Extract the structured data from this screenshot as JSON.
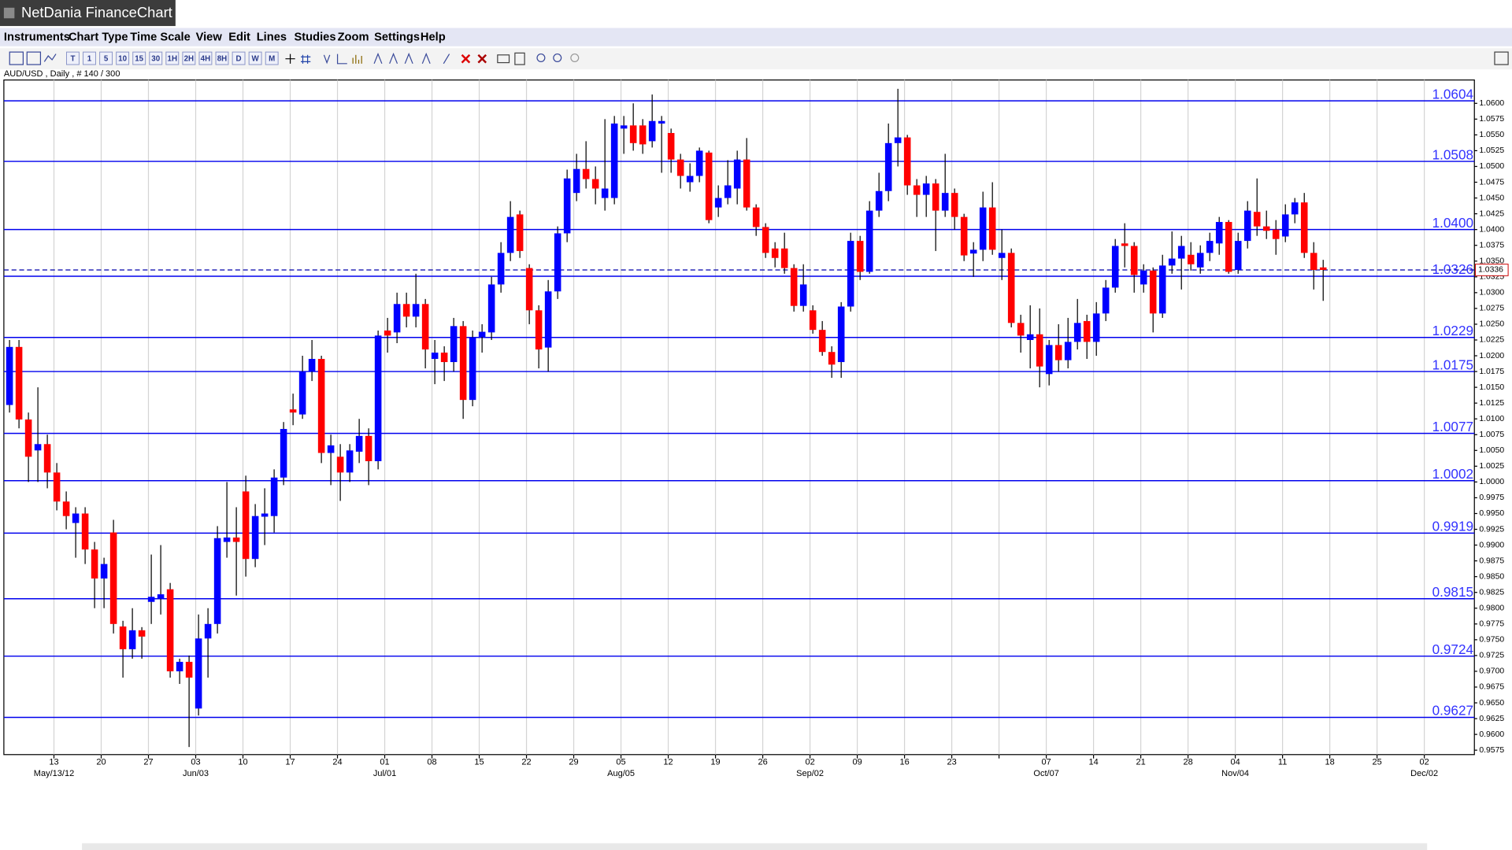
{
  "app_title": "NetDania FinanceChart",
  "menu": [
    "Instruments",
    "Chart Type",
    "Time Scale",
    "View",
    "Edit",
    "Lines",
    "Studies",
    "Zoom",
    "Settings",
    "Help"
  ],
  "toolbar": [
    "T",
    "1",
    "5",
    "10",
    "15",
    "30",
    "1H",
    "2H",
    "4H",
    "8H",
    "D",
    "W",
    "M"
  ],
  "chart_data": {
    "type": "candlestick",
    "instrument_label": "AUD/USD , Daily , # 140 / 300",
    "up_color": "#0000ff",
    "down_color": "#ff0000",
    "level_color": "#0000ee",
    "grid": true,
    "open": [
      1.0122,
      1.0214,
      1.0099,
      1.005,
      1.006,
      1.0015,
      0.9969,
      0.9935,
      0.995,
      0.9893,
      0.9847,
      0.992,
      0.9771,
      0.9735,
      0.9765,
      0.981,
      0.9815,
      0.983,
      0.97,
      0.9715,
      0.9641,
      0.9752,
      0.9775,
      0.9905,
      0.9912,
      0.9985,
      0.9878,
      0.9945,
      0.9946,
      1.0007,
      1.0115,
      1.0107,
      1.0175,
      1.0195,
      1.0046,
      1.004,
      1.0015,
      1.0048,
      1.0073,
      1.0033,
      1.024,
      1.0237,
      1.0282,
      1.0262,
      1.0282,
      1.0195,
      1.0205,
      1.019,
      1.0247,
      1.013,
      1.023,
      1.0237,
      1.0313,
      1.0363,
      1.0424,
      1.0339,
      1.0272,
      1.0213,
      1.0302,
      1.0394,
      1.0458,
      1.0496,
      1.048,
      1.045,
      1.045,
      1.056,
      1.0565,
      1.0565,
      1.054,
      1.0568,
      1.0553,
      1.0511,
      1.0475,
      1.0485,
      1.0522,
      1.0435,
      1.045,
      1.0465,
      1.0511,
      1.0435,
      1.0404,
      1.037,
      1.037,
      1.0339,
      1.0279,
      1.0272,
      1.0241,
      1.0206,
      1.019,
      1.0278,
      1.0382,
      1.0333,
      1.043,
      1.0461,
      1.0537,
      1.0546,
      1.047,
      1.0455,
      1.0473,
      1.043,
      1.0458,
      1.042,
      1.0362,
      1.0368,
      1.0435,
      1.0355,
      1.0363,
      1.0252,
      1.0225,
      1.0234,
      1.0171,
      1.0217,
      1.0193,
      1.0222,
      1.0255,
      1.0222,
      1.0267,
      1.0308,
      1.0378,
      1.0374,
      1.0313,
      1.0335,
      1.0267,
      1.0343,
      1.0354,
      1.036,
      1.034,
      1.0363,
      1.0378,
      1.0412,
      1.0336,
      1.0382,
      1.0428,
      1.0405,
      1.04,
      1.0389,
      1.0424,
      1.0443,
      1.0363,
      1.034
    ],
    "high": [
      1.0225,
      1.0225,
      1.011,
      1.015,
      1.0075,
      1.003,
      0.9985,
      0.996,
      0.996,
      0.9905,
      0.988,
      0.994,
      0.978,
      0.98,
      0.977,
      0.9885,
      0.99,
      0.984,
      0.972,
      0.9725,
      0.979,
      0.98,
      0.993,
      1.0,
      0.996,
      1.001,
      0.9965,
      0.999,
      1.002,
      1.0095,
      1.014,
      1.02,
      1.0225,
      1.02,
      1.0075,
      1.006,
      1.006,
      1.01,
      1.0085,
      1.024,
      1.026,
      1.03,
      1.03,
      1.033,
      1.029,
      1.0225,
      1.0215,
      1.026,
      1.0255,
      1.024,
      1.025,
      1.0325,
      1.038,
      1.0445,
      1.043,
      1.0345,
      1.028,
      1.032,
      1.0405,
      1.0495,
      1.052,
      1.054,
      1.05,
      1.0575,
      1.058,
      1.058,
      1.06,
      1.0575,
      1.0614,
      1.058,
      1.056,
      1.052,
      1.0505,
      1.053,
      1.0525,
      1.047,
      1.051,
      1.0525,
      1.0545,
      1.044,
      1.041,
      1.038,
      1.0395,
      1.0345,
      1.0345,
      1.028,
      1.0255,
      1.0215,
      1.0285,
      1.0395,
      1.039,
      1.0445,
      1.049,
      1.0568,
      1.0623,
      1.055,
      1.048,
      1.0485,
      1.048,
      1.052,
      1.0465,
      1.0425,
      1.038,
      1.046,
      1.0475,
      1.04,
      1.037,
      1.0265,
      1.028,
      1.0275,
      1.0225,
      1.025,
      1.026,
      1.029,
      1.0265,
      1.0285,
      1.032,
      1.0385,
      1.041,
      1.038,
      1.0345,
      1.034,
      1.036,
      1.0397,
      1.039,
      1.038,
      1.0375,
      1.0395,
      1.042,
      1.0415,
      1.0395,
      1.0445,
      1.0481,
      1.043,
      1.0415,
      1.044,
      1.045,
      1.0458,
      1.038,
      1.0352
    ],
    "low": [
      1.011,
      1.0085,
      1.0,
      1.0,
      0.999,
      0.9955,
      0.9925,
      0.988,
      0.987,
      0.98,
      0.98,
      0.976,
      0.969,
      0.972,
      0.972,
      0.9775,
      0.979,
      0.969,
      0.968,
      0.958,
      0.963,
      0.969,
      0.976,
      0.988,
      0.982,
      0.985,
      0.9865,
      0.99,
      0.992,
      0.9995,
      1.009,
      1.01,
      1.016,
      1.003,
      0.9995,
      0.997,
      1.0,
      1.003,
      0.9995,
      1.002,
      1.0205,
      1.022,
      1.0245,
      1.0245,
      1.018,
      1.0155,
      1.016,
      1.0175,
      1.01,
      1.012,
      1.0205,
      1.0225,
      1.03,
      1.035,
      1.0355,
      1.025,
      1.018,
      1.0175,
      1.029,
      1.038,
      1.0445,
      1.0465,
      1.044,
      1.043,
      1.044,
      1.052,
      1.0525,
      1.052,
      1.053,
      1.049,
      1.049,
      1.0465,
      1.046,
      1.0475,
      1.041,
      1.042,
      1.044,
      1.044,
      1.043,
      1.039,
      1.0355,
      1.034,
      1.033,
      1.027,
      1.027,
      1.0235,
      1.02,
      1.0165,
      1.0165,
      1.027,
      1.032,
      1.033,
      1.042,
      1.0445,
      1.05,
      1.0455,
      1.042,
      1.042,
      1.0366,
      1.042,
      1.04,
      1.035,
      1.0325,
      1.035,
      1.036,
      1.032,
      1.0245,
      1.0205,
      1.018,
      1.015,
      1.0153,
      1.0175,
      1.018,
      1.021,
      1.0195,
      1.02,
      1.0255,
      1.03,
      1.034,
      1.03,
      1.03,
      1.0237,
      1.026,
      1.033,
      1.0305,
      1.0335,
      1.033,
      1.035,
      1.036,
      1.033,
      1.033,
      1.037,
      1.039,
      1.0385,
      1.036,
      1.038,
      1.041,
      1.0355,
      1.0305,
      1.0287
    ],
    "close": [
      1.0214,
      1.0099,
      1.004,
      1.006,
      1.0015,
      0.9969,
      0.9946,
      0.995,
      0.9893,
      0.9847,
      0.987,
      0.9775,
      0.9735,
      0.9765,
      0.9755,
      0.9818,
      0.9822,
      0.97,
      0.9715,
      0.969,
      0.9752,
      0.9775,
      0.9911,
      0.9912,
      0.9905,
      0.9878,
      0.9946,
      0.995,
      1.0007,
      1.0084,
      1.011,
      1.0175,
      1.0195,
      1.0046,
      1.0058,
      1.0015,
      1.005,
      1.0073,
      1.0033,
      1.0232,
      1.0232,
      1.0282,
      1.0262,
      1.0282,
      1.021,
      1.0205,
      1.019,
      1.0247,
      1.013,
      1.0229,
      1.0238,
      1.0313,
      1.0363,
      1.042,
      1.0366,
      1.0272,
      1.021,
      1.0302,
      1.0394,
      1.0481,
      1.0496,
      1.048,
      1.0465,
      1.0465,
      1.0568,
      1.0565,
      1.0537,
      1.0535,
      1.0572,
      1.0572,
      1.0511,
      1.0485,
      1.0485,
      1.0525,
      1.0415,
      1.045,
      1.047,
      1.0511,
      1.0435,
      1.0404,
      1.0363,
      1.0355,
      1.0339,
      1.0279,
      1.0313,
      1.0241,
      1.0206,
      1.0186,
      1.0278,
      1.0382,
      1.0333,
      1.043,
      1.0461,
      1.0537,
      1.0546,
      1.047,
      1.0455,
      1.0473,
      1.043,
      1.0458,
      1.042,
      1.0359,
      1.0368,
      1.0435,
      1.0368,
      1.0363,
      1.0252,
      1.0232,
      1.0234,
      1.0183,
      1.0217,
      1.0193,
      1.0222,
      1.0252,
      1.0222,
      1.0267,
      1.0308,
      1.0374,
      1.0374,
      1.0328,
      1.0335,
      1.0267,
      1.0343,
      1.0354,
      1.0374,
      1.0345,
      1.0363,
      1.0382,
      1.0412,
      1.0333,
      1.0382,
      1.043,
      1.0405,
      1.0398,
      1.0385,
      1.0424,
      1.0443,
      1.0363,
      1.0336,
      1.0336
    ],
    "last_price": 1.0336,
    "xlim": [
      -0.6,
      155
    ],
    "xticks": [
      {
        "value": 4.7,
        "label": "13",
        "month": "May/13/12"
      },
      {
        "value": 9.7,
        "label": "20"
      },
      {
        "value": 14.7,
        "label": "27"
      },
      {
        "value": 19.7,
        "label": "03",
        "month": "Jun/03"
      },
      {
        "value": 24.7,
        "label": "10"
      },
      {
        "value": 29.7,
        "label": "17"
      },
      {
        "value": 34.7,
        "label": "24"
      },
      {
        "value": 39.7,
        "label": "01",
        "month": "Jul/01"
      },
      {
        "value": 44.7,
        "label": "08"
      },
      {
        "value": 49.7,
        "label": "15"
      },
      {
        "value": 54.7,
        "label": "22"
      },
      {
        "value": 59.7,
        "label": "29"
      },
      {
        "value": 64.7,
        "label": "05",
        "month": "Aug/05"
      },
      {
        "value": 69.7,
        "label": "12"
      },
      {
        "value": 74.7,
        "label": "19"
      },
      {
        "value": 79.7,
        "label": "26"
      },
      {
        "value": 84.7,
        "label": "02",
        "month": "Sep/02"
      },
      {
        "value": 89.7,
        "label": "09"
      },
      {
        "value": 94.7,
        "label": "16"
      },
      {
        "value": 99.7,
        "label": "23"
      },
      {
        "value": 104.7,
        "label": null
      },
      {
        "value": 109.7,
        "label": "07",
        "month": "Oct/07"
      },
      {
        "value": 114.7,
        "label": "14"
      },
      {
        "value": 119.7,
        "label": "21"
      },
      {
        "value": 124.7,
        "label": "28"
      },
      {
        "value": 129.7,
        "label": "04",
        "month": "Nov/04"
      },
      {
        "value": 134.7,
        "label": "11"
      },
      {
        "value": 139.7,
        "label": "18"
      },
      {
        "value": 144.7,
        "label": "25"
      },
      {
        "value": 149.7,
        "label": "02",
        "month": "Dec/02"
      }
    ],
    "ylim": [
      0.9568,
      1.0637
    ],
    "yticks": [
      0.9575,
      {
        "value": 0.96,
        "label": "0.9600"
      },
      0.9625,
      {
        "value": 0.965,
        "label": "0.9650"
      },
      0.9675,
      {
        "value": 0.97,
        "label": "0.9700"
      },
      0.9725,
      {
        "value": 0.975,
        "label": "0.9750"
      },
      0.9775,
      {
        "value": 0.98,
        "label": "0.9800"
      },
      0.9825,
      {
        "value": 0.985,
        "label": "0.9850"
      },
      0.9875,
      {
        "value": 0.99,
        "label": "0.9900"
      },
      0.9925,
      {
        "value": 0.995,
        "label": "0.9950"
      },
      0.9975,
      {
        "value": 1,
        "label": "1.0000"
      },
      1.0025,
      {
        "value": 1.005,
        "label": "1.0050"
      },
      1.0075,
      {
        "value": 1.01,
        "label": "1.0100"
      },
      1.0125,
      {
        "value": 1.015,
        "label": "1.0150"
      },
      1.0175,
      {
        "value": 1.02,
        "label": "1.0200"
      },
      1.0225,
      {
        "value": 1.025,
        "label": "1.0250"
      },
      1.0275,
      {
        "value": 1.03,
        "label": "1.0300"
      },
      1.0325,
      {
        "value": 1.035,
        "label": "1.0350"
      },
      1.0375,
      {
        "value": 1.04,
        "label": "1.0400"
      },
      1.0425,
      {
        "value": 1.045,
        "label": "1.0450"
      },
      1.0475,
      {
        "value": 1.05,
        "label": "1.0500"
      },
      1.0525,
      {
        "value": 1.055,
        "label": "1.0550"
      },
      1.0575,
      {
        "value": 1.06,
        "label": "1.0600"
      }
    ],
    "levels": [
      1.0604,
      1.0508,
      {
        "value": 1.04,
        "label": "1.0400"
      },
      1.0326,
      1.0229,
      1.0175,
      1.0077,
      1.0002,
      0.9919,
      0.9815,
      0.9724,
      0.9627
    ]
  }
}
